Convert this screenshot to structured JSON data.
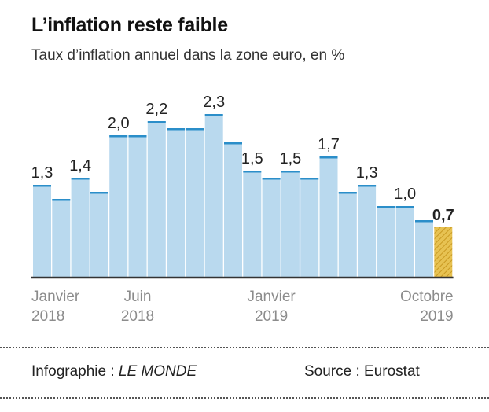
{
  "title": "L’inflation reste faible",
  "subtitle": "Taux d’inflation annuel dans la zone euro, en %",
  "credit_prefix": "Infographie : ",
  "credit_brand": "LE MONDE",
  "source": "Source : Eurostat",
  "colors": {
    "bar_fill": "#b9d9ee",
    "bar_top": "#2b8ec9",
    "highlight": "#e7c252",
    "axis": "#333333",
    "text": "#222222",
    "tick_label": "#8c8c8c"
  },
  "chart_data": {
    "type": "bar",
    "title": "L’inflation reste faible",
    "subtitle": "Taux d’inflation annuel dans la zone euro, en %",
    "xlabel": "",
    "ylabel": "",
    "ylim": [
      0,
      2.3
    ],
    "categories": [
      "2018-01",
      "2018-02",
      "2018-03",
      "2018-04",
      "2018-05",
      "2018-06",
      "2018-07",
      "2018-08",
      "2018-09",
      "2018-10",
      "2018-11",
      "2018-12",
      "2019-01",
      "2019-02",
      "2019-03",
      "2019-04",
      "2019-05",
      "2019-06",
      "2019-07",
      "2019-08",
      "2019-09",
      "2019-10"
    ],
    "values": [
      1.3,
      1.1,
      1.4,
      1.2,
      2.0,
      2.0,
      2.2,
      2.1,
      2.1,
      2.3,
      1.9,
      1.5,
      1.4,
      1.5,
      1.4,
      1.7,
      1.2,
      1.3,
      1.0,
      1.0,
      0.8,
      0.7
    ],
    "data_labels": [
      {
        "index": 0,
        "text": "1,3"
      },
      {
        "index": 2,
        "text": "1,4"
      },
      {
        "index": 4,
        "text": "2,0"
      },
      {
        "index": 6,
        "text": "2,2"
      },
      {
        "index": 9,
        "text": "2,3"
      },
      {
        "index": 11,
        "text": "1,5"
      },
      {
        "index": 13,
        "text": "1,5"
      },
      {
        "index": 15,
        "text": "1,7"
      },
      {
        "index": 17,
        "text": "1,3"
      },
      {
        "index": 19,
        "text": "1,0"
      },
      {
        "index": 21,
        "text": "0,7",
        "bold": true
      }
    ],
    "highlight_index": 21,
    "x_tick_labels": [
      {
        "index": 0,
        "line1": "Janvier",
        "line2": "2018"
      },
      {
        "index": 5,
        "line1": "Juin",
        "line2": "2018"
      },
      {
        "index": 12,
        "line1": "Janvier",
        "line2": "2019"
      },
      {
        "index": 21,
        "line1": "Octobre",
        "line2": "2019"
      }
    ],
    "grid": false,
    "legend": "none"
  }
}
